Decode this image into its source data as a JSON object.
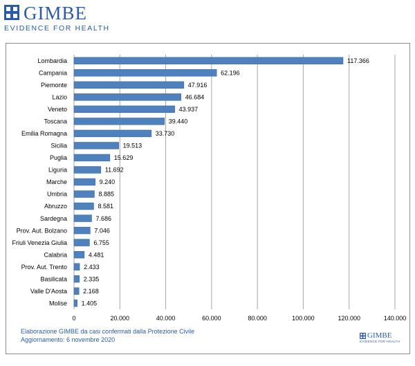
{
  "header": {
    "logo_word": "GIMBE",
    "logo_tagline": "EVIDENCE FOR HEALTH"
  },
  "caption": {
    "line1": "Elaborazione GIMBE da casi confermati dalla Protezione Civile",
    "line2": "Aggiornamento: 6 novembre 2020"
  },
  "footer_logo": {
    "word": "GIMBE",
    "tagline": "EVIDENCE FOR HEALTH"
  },
  "colors": {
    "bar": "#4f81bd",
    "bar_edge": "#3a6aa6",
    "grid": "#a6a6a6",
    "brand": "#2b5ba8"
  },
  "chart_data": {
    "type": "bar",
    "orientation": "horizontal",
    "categories": [
      "Lombardia",
      "Campania",
      "Piemonte",
      "Lazio",
      "Veneto",
      "Toscana",
      "Emilia Romagna",
      "Sicilia",
      "Puglia",
      "Liguria",
      "Marche",
      "Umbria",
      "Abruzzo",
      "Sardegna",
      "Prov. Aut. Bolzano",
      "Friuli Venezia Giulia",
      "Calabria",
      "Prov. Aut. Trento",
      "Basilicata",
      "Valle D'Aosta",
      "Molise"
    ],
    "values": [
      117366,
      62196,
      47916,
      46684,
      43937,
      39440,
      33730,
      19513,
      15629,
      11692,
      9240,
      8885,
      8581,
      7686,
      7046,
      6755,
      4481,
      2433,
      2335,
      2168,
      1405
    ],
    "value_labels": [
      "117.366",
      "62.196",
      "47.916",
      "46.684",
      "43.937",
      "39.440",
      "33.730",
      "19.513",
      "15.629",
      "11.692",
      "9.240",
      "8.885",
      "8.581",
      "7.686",
      "7.046",
      "6.755",
      "4.481",
      "2.433",
      "2.335",
      "2.168",
      "1.405"
    ],
    "x_ticks": [
      0,
      20000,
      40000,
      60000,
      80000,
      100000,
      120000,
      140000
    ],
    "x_tick_labels": [
      "0",
      "20.000",
      "40.000",
      "60.000",
      "80.000",
      "100.000",
      "120.000",
      "140.000"
    ],
    "xlim": [
      0,
      140000
    ],
    "grid": "vertical",
    "legend": "none"
  }
}
